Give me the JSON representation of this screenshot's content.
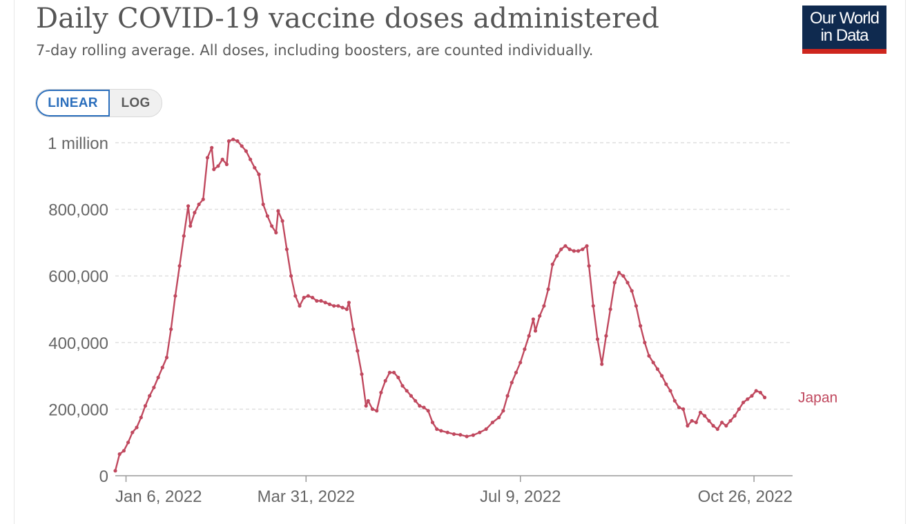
{
  "header": {
    "title": "Daily COVID-19 vaccine doses administered",
    "subtitle": "7-day rolling average. All doses, including boosters, are counted individually.",
    "logo_line1": "Our World",
    "logo_line2": "in Data"
  },
  "controls": {
    "linear_label": "LINEAR",
    "log_label": "LOG",
    "selected": "LINEAR"
  },
  "colors": {
    "series": "#c0485e",
    "grid": "#dddddd",
    "axis": "#999999"
  },
  "chart_data": {
    "type": "line",
    "title": "Daily COVID-19 vaccine doses administered",
    "subtitle": "7-day rolling average. All doses, including boosters, are counted individually.",
    "scale": "linear",
    "grid": true,
    "legend": "inline label at end of line",
    "xlim": [
      "2022-01-01",
      "2022-11-13"
    ],
    "ylim": [
      0,
      1000000
    ],
    "x_ticks": [
      {
        "date": "2022-01-06",
        "label": "Jan 6, 2022"
      },
      {
        "date": "2022-03-31",
        "label": "Mar 31, 2022"
      },
      {
        "date": "2022-07-09",
        "label": "Jul 9, 2022"
      },
      {
        "date": "2022-10-26",
        "label": "Oct 26, 2022"
      }
    ],
    "y_ticks": [
      {
        "value": 0,
        "label": "0"
      },
      {
        "value": 200000,
        "label": "200,000"
      },
      {
        "value": 400000,
        "label": "400,000"
      },
      {
        "value": 600000,
        "label": "600,000"
      },
      {
        "value": 800000,
        "label": "800,000"
      },
      {
        "value": 1000000,
        "label": "1 million"
      }
    ],
    "series": [
      {
        "name": "Japan",
        "points": [
          [
            "2022-01-01",
            15000
          ],
          [
            "2022-01-03",
            65000
          ],
          [
            "2022-01-05",
            75000
          ],
          [
            "2022-01-07",
            100000
          ],
          [
            "2022-01-09",
            130000
          ],
          [
            "2022-01-11",
            145000
          ],
          [
            "2022-01-13",
            175000
          ],
          [
            "2022-01-15",
            210000
          ],
          [
            "2022-01-17",
            240000
          ],
          [
            "2022-01-19",
            265000
          ],
          [
            "2022-01-21",
            295000
          ],
          [
            "2022-01-23",
            325000
          ],
          [
            "2022-01-25",
            355000
          ],
          [
            "2022-01-27",
            440000
          ],
          [
            "2022-01-29",
            540000
          ],
          [
            "2022-01-31",
            630000
          ],
          [
            "2022-02-02",
            720000
          ],
          [
            "2022-02-04",
            810000
          ],
          [
            "2022-02-05",
            750000
          ],
          [
            "2022-02-07",
            790000
          ],
          [
            "2022-02-09",
            815000
          ],
          [
            "2022-02-11",
            830000
          ],
          [
            "2022-02-13",
            955000
          ],
          [
            "2022-02-15",
            985000
          ],
          [
            "2022-02-16",
            920000
          ],
          [
            "2022-02-18",
            930000
          ],
          [
            "2022-02-20",
            950000
          ],
          [
            "2022-02-22",
            935000
          ],
          [
            "2022-02-23",
            1005000
          ],
          [
            "2022-02-25",
            1010000
          ],
          [
            "2022-02-27",
            1005000
          ],
          [
            "2022-03-01",
            990000
          ],
          [
            "2022-03-03",
            975000
          ],
          [
            "2022-03-05",
            950000
          ],
          [
            "2022-03-07",
            925000
          ],
          [
            "2022-03-09",
            905000
          ],
          [
            "2022-03-11",
            815000
          ],
          [
            "2022-03-13",
            780000
          ],
          [
            "2022-03-15",
            750000
          ],
          [
            "2022-03-17",
            730000
          ],
          [
            "2022-03-18",
            795000
          ],
          [
            "2022-03-20",
            765000
          ],
          [
            "2022-03-22",
            680000
          ],
          [
            "2022-03-24",
            600000
          ],
          [
            "2022-03-26",
            540000
          ],
          [
            "2022-03-28",
            510000
          ],
          [
            "2022-03-30",
            535000
          ],
          [
            "2022-04-01",
            540000
          ],
          [
            "2022-04-03",
            535000
          ],
          [
            "2022-04-05",
            525000
          ],
          [
            "2022-04-07",
            525000
          ],
          [
            "2022-04-09",
            520000
          ],
          [
            "2022-04-11",
            515000
          ],
          [
            "2022-04-13",
            510000
          ],
          [
            "2022-04-15",
            510000
          ],
          [
            "2022-04-17",
            505000
          ],
          [
            "2022-04-19",
            500000
          ],
          [
            "2022-04-20",
            520000
          ],
          [
            "2022-04-22",
            440000
          ],
          [
            "2022-04-24",
            375000
          ],
          [
            "2022-04-26",
            305000
          ],
          [
            "2022-04-28",
            210000
          ],
          [
            "2022-04-29",
            225000
          ],
          [
            "2022-05-01",
            200000
          ],
          [
            "2022-05-03",
            195000
          ],
          [
            "2022-05-05",
            250000
          ],
          [
            "2022-05-07",
            285000
          ],
          [
            "2022-05-09",
            310000
          ],
          [
            "2022-05-11",
            310000
          ],
          [
            "2022-05-13",
            295000
          ],
          [
            "2022-05-15",
            270000
          ],
          [
            "2022-05-17",
            255000
          ],
          [
            "2022-05-19",
            240000
          ],
          [
            "2022-05-21",
            225000
          ],
          [
            "2022-05-23",
            210000
          ],
          [
            "2022-05-25",
            205000
          ],
          [
            "2022-05-27",
            195000
          ],
          [
            "2022-05-29",
            160000
          ],
          [
            "2022-05-31",
            140000
          ],
          [
            "2022-06-02",
            135000
          ],
          [
            "2022-06-05",
            130000
          ],
          [
            "2022-06-08",
            125000
          ],
          [
            "2022-06-11",
            123000
          ],
          [
            "2022-06-14",
            118000
          ],
          [
            "2022-06-17",
            122000
          ],
          [
            "2022-06-20",
            130000
          ],
          [
            "2022-06-23",
            140000
          ],
          [
            "2022-06-26",
            160000
          ],
          [
            "2022-06-29",
            175000
          ],
          [
            "2022-07-01",
            195000
          ],
          [
            "2022-07-03",
            240000
          ],
          [
            "2022-07-05",
            280000
          ],
          [
            "2022-07-07",
            310000
          ],
          [
            "2022-07-09",
            340000
          ],
          [
            "2022-07-11",
            380000
          ],
          [
            "2022-07-13",
            420000
          ],
          [
            "2022-07-15",
            470000
          ],
          [
            "2022-07-16",
            435000
          ],
          [
            "2022-07-18",
            480000
          ],
          [
            "2022-07-20",
            510000
          ],
          [
            "2022-07-22",
            560000
          ],
          [
            "2022-07-24",
            635000
          ],
          [
            "2022-07-26",
            660000
          ],
          [
            "2022-07-28",
            680000
          ],
          [
            "2022-07-30",
            690000
          ],
          [
            "2022-08-01",
            680000
          ],
          [
            "2022-08-03",
            675000
          ],
          [
            "2022-08-05",
            675000
          ],
          [
            "2022-08-07",
            680000
          ],
          [
            "2022-08-09",
            690000
          ],
          [
            "2022-08-10",
            630000
          ],
          [
            "2022-08-12",
            510000
          ],
          [
            "2022-08-14",
            410000
          ],
          [
            "2022-08-16",
            335000
          ],
          [
            "2022-08-18",
            420000
          ],
          [
            "2022-08-20",
            500000
          ],
          [
            "2022-08-22",
            580000
          ],
          [
            "2022-08-24",
            610000
          ],
          [
            "2022-08-26",
            600000
          ],
          [
            "2022-08-28",
            580000
          ],
          [
            "2022-08-30",
            555000
          ],
          [
            "2022-09-01",
            510000
          ],
          [
            "2022-09-03",
            450000
          ],
          [
            "2022-09-05",
            400000
          ],
          [
            "2022-09-07",
            360000
          ],
          [
            "2022-09-09",
            340000
          ],
          [
            "2022-09-11",
            320000
          ],
          [
            "2022-09-13",
            300000
          ],
          [
            "2022-09-15",
            275000
          ],
          [
            "2022-09-17",
            255000
          ],
          [
            "2022-09-19",
            225000
          ],
          [
            "2022-09-21",
            205000
          ],
          [
            "2022-09-23",
            200000
          ],
          [
            "2022-09-25",
            150000
          ],
          [
            "2022-09-27",
            165000
          ],
          [
            "2022-09-29",
            160000
          ],
          [
            "2022-10-01",
            190000
          ],
          [
            "2022-10-03",
            180000
          ],
          [
            "2022-10-05",
            165000
          ],
          [
            "2022-10-07",
            150000
          ],
          [
            "2022-10-09",
            140000
          ],
          [
            "2022-10-11",
            160000
          ],
          [
            "2022-10-13",
            150000
          ],
          [
            "2022-10-15",
            165000
          ],
          [
            "2022-10-17",
            180000
          ],
          [
            "2022-10-19",
            200000
          ],
          [
            "2022-10-21",
            220000
          ],
          [
            "2022-10-23",
            230000
          ],
          [
            "2022-10-25",
            240000
          ],
          [
            "2022-10-27",
            255000
          ],
          [
            "2022-10-29",
            250000
          ],
          [
            "2022-10-31",
            235000
          ]
        ]
      }
    ]
  }
}
